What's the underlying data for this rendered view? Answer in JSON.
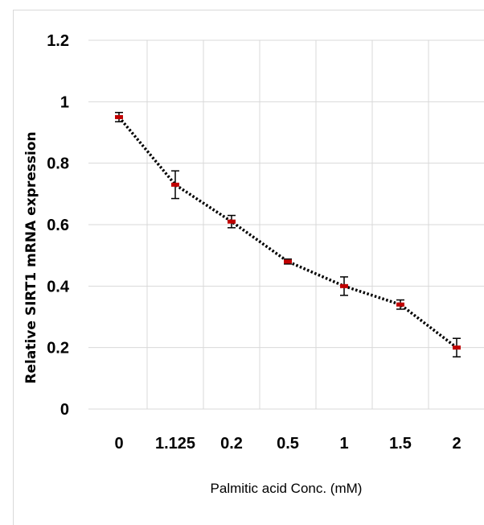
{
  "chart_data": {
    "type": "line",
    "title": "",
    "xlabel": "Palmitic acid  Conc. (mM)",
    "ylabel": "Relative SIRT1 mRNA expression",
    "categories": [
      "0",
      "1.125",
      "0.2",
      "0.5",
      "1",
      "1.5",
      "2"
    ],
    "series": [
      {
        "values": [
          0.95,
          0.73,
          0.61,
          0.48,
          0.4,
          0.34,
          0.2
        ],
        "errors": [
          0.015,
          0.045,
          0.02,
          0.008,
          0.03,
          0.015,
          0.03
        ],
        "line_color": "#000000",
        "line_style": "dotted",
        "marker_color": "#c00000"
      }
    ],
    "yticks": [
      "0",
      "0.2",
      "0.4",
      "0.6",
      "0.8",
      "1",
      "1.2"
    ],
    "ylim": [
      0,
      1.2
    ],
    "grid": true
  }
}
